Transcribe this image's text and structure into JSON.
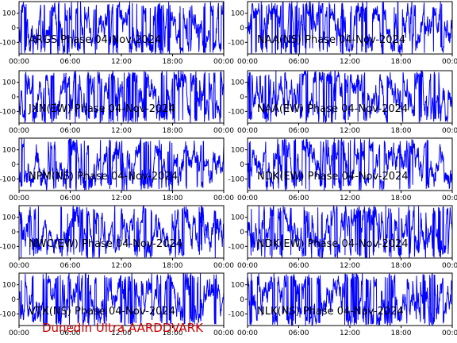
{
  "footer_text": "Dunedin Ultra AARDDVARK",
  "colors": {
    "trace": "#0000ff",
    "footer": "#cc0000",
    "axes": "#000000"
  },
  "chart_data": [
    {
      "type": "line",
      "title": "ARGS Phase 04-Nov-2024",
      "x_ticks": [
        "00:00",
        "06:00",
        "12:00",
        "18:00",
        "00:00"
      ],
      "y_ticks": [
        "100",
        "0",
        "-100"
      ],
      "xlim": [
        0,
        24
      ],
      "ylim": [
        -180,
        180
      ],
      "signal": "phase wrapping between ±180"
    },
    {
      "type": "line",
      "title": "NAA(NS) Phase 04-Nov-2024",
      "x_ticks": [
        "00:00",
        "06:00",
        "12:00",
        "18:00",
        "00:00"
      ],
      "y_ticks": [
        "100",
        "0",
        "-100"
      ],
      "xlim": [
        0,
        24
      ],
      "ylim": [
        -180,
        180
      ],
      "signal": "phase wrapping between ±180"
    },
    {
      "type": "line",
      "title": "JXN(EW) Phase 04-Nov-2024",
      "x_ticks": [
        "00:00",
        "06:00",
        "12:00",
        "18:00",
        "00:00"
      ],
      "y_ticks": [
        "100",
        "0",
        "-100"
      ],
      "xlim": [
        0,
        24
      ],
      "ylim": [
        -180,
        180
      ],
      "signal": "phase wrapping between ±180"
    },
    {
      "type": "line",
      "title": "NAA(EW) Phase 04-Nov-2024",
      "x_ticks": [
        "00:00",
        "06:00",
        "12:00",
        "18:00",
        "00:00"
      ],
      "y_ticks": [
        "100",
        "0",
        "-100"
      ],
      "xlim": [
        0,
        24
      ],
      "ylim": [
        -180,
        180
      ],
      "signal": "phase wrapping between ±180"
    },
    {
      "type": "line",
      "title": "NPM(NS) Phase 04-Nov-2024",
      "x_ticks": [
        "00:00",
        "06:00",
        "12:00",
        "18:00",
        "00:00"
      ],
      "y_ticks": [
        "100",
        "0",
        "-100"
      ],
      "xlim": [
        0,
        24
      ],
      "ylim": [
        -180,
        180
      ],
      "signal": "phase wrapping between ±180"
    },
    {
      "type": "line",
      "title": "NDK(EW) Phase 04-Nov-2024",
      "x_ticks": [
        "00:00",
        "06:00",
        "12:00",
        "18:00",
        "00:00"
      ],
      "y_ticks": [
        "100",
        "0",
        "-100"
      ],
      "xlim": [
        0,
        24
      ],
      "ylim": [
        -180,
        180
      ],
      "signal": "phase wrapping between ±180"
    },
    {
      "type": "line",
      "title": "NWC(EW) Phase 04-Nov-2024",
      "x_ticks": [
        "00:00",
        "06:00",
        "12:00",
        "18:00",
        "00:00"
      ],
      "y_ticks": [
        "100",
        "0",
        "-100"
      ],
      "xlim": [
        0,
        24
      ],
      "ylim": [
        -180,
        180
      ],
      "signal": "phase wrapping between ±180"
    },
    {
      "type": "line",
      "title": "NDK(EW) Phase 04-Nov-2024",
      "x_ticks": [
        "00:00",
        "06:00",
        "12:00",
        "18:00",
        "00:00"
      ],
      "y_ticks": [
        "100",
        "0",
        "-100"
      ],
      "xlim": [
        0,
        24
      ],
      "ylim": [
        -180,
        180
      ],
      "signal": "phase wrapping between ±180"
    },
    {
      "type": "line",
      "title": "VTX(NS) Phase 04-Nov-2024",
      "x_ticks": [
        "00:00",
        "06:00",
        "12:00",
        "18:00",
        "00:00"
      ],
      "y_ticks": [
        "100",
        "0",
        "-100"
      ],
      "xlim": [
        0,
        24
      ],
      "ylim": [
        -180,
        180
      ],
      "signal": "phase wrapping between ±180"
    },
    {
      "type": "line",
      "title": "NLK(NS) Phase 04-Nov-2024",
      "x_ticks": [
        "00:00",
        "06:00",
        "12:00",
        "18:00",
        "00:00"
      ],
      "y_ticks": [
        "100",
        "0",
        "-100"
      ],
      "xlim": [
        0,
        24
      ],
      "ylim": [
        -180,
        180
      ],
      "signal": "phase wrapping between ±180"
    }
  ]
}
